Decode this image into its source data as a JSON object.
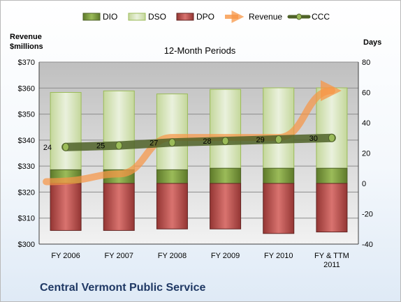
{
  "chart_data": {
    "type": "bar",
    "subtitle": "12-Month Periods",
    "company": "Central Vermont Public Service",
    "left_axis": {
      "title_line1": "Revenue",
      "title_line2": "$millions",
      "min": 300,
      "max": 370,
      "step": 10,
      "tick_labels": [
        "$300",
        "$310",
        "$320",
        "$330",
        "$340",
        "$350",
        "$360",
        "$370"
      ]
    },
    "right_axis": {
      "title": "Days",
      "min": -40,
      "max": 80,
      "step": 20,
      "tick_labels": [
        "-40",
        "-20",
        "0",
        "20",
        "40",
        "60",
        "80"
      ]
    },
    "categories": [
      [
        "FY 2006"
      ],
      [
        "FY 2007"
      ],
      [
        "FY 2008"
      ],
      [
        "FY 2009"
      ],
      [
        "FY 2010"
      ],
      [
        "FY & TTM",
        "2011"
      ]
    ],
    "legend": [
      "DIO",
      "DSO",
      "DPO",
      "Revenue",
      "CCC"
    ],
    "series": [
      {
        "name": "DIO",
        "axis": "right",
        "values": [
          9,
          9,
          9,
          10,
          10,
          10
        ],
        "color": "#77933c"
      },
      {
        "name": "DSO",
        "axis": "right",
        "values": [
          51,
          52,
          50,
          52,
          53,
          53
        ],
        "color": "#d7e4bd"
      },
      {
        "name": "DPO",
        "axis": "right",
        "values": [
          -31,
          -31,
          -30,
          -30,
          -33,
          -32
        ],
        "color": "#c0504d"
      },
      {
        "name": "Revenue",
        "axis": "left",
        "values": [
          324,
          327,
          341,
          341,
          341,
          359
        ],
        "color": "#f79646"
      },
      {
        "name": "CCC",
        "axis": "right",
        "values": [
          24,
          25,
          27,
          28,
          29,
          30
        ],
        "color": "#4f6228"
      }
    ],
    "ccc_labels": [
      "24",
      "25",
      "27",
      "28",
      "29",
      "30"
    ],
    "grid": true
  }
}
